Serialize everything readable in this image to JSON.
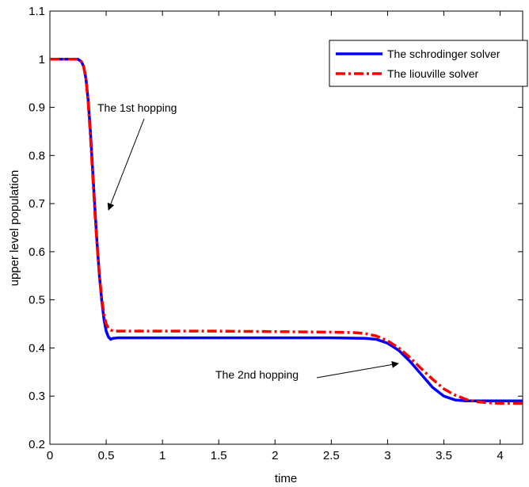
{
  "chart_data": {
    "type": "line",
    "title": "",
    "xlabel": "time",
    "ylabel": "upper level population",
    "xlim": [
      0,
      4.2
    ],
    "ylim": [
      0.2,
      1.1
    ],
    "xticks": [
      0,
      0.5,
      1,
      1.5,
      2,
      2.5,
      3,
      3.5,
      4
    ],
    "xtick_labels": [
      "0",
      "0.5",
      "1",
      "1.5",
      "2",
      "2.5",
      "3",
      "3.5",
      "4"
    ],
    "yticks": [
      0.2,
      0.3,
      0.4,
      0.5,
      0.6,
      0.7,
      0.8,
      0.9,
      1.0,
      1.1
    ],
    "ytick_labels": [
      "0.2",
      "0.3",
      "0.4",
      "0.5",
      "0.6",
      "0.7",
      "0.8",
      "0.9",
      "1",
      "1.1"
    ],
    "grid": false,
    "legend_position": "top-right",
    "series": [
      {
        "name": "The schrodinger solver",
        "color": "#0000ff",
        "style": "solid",
        "x": [
          0,
          0.25,
          0.28,
          0.3,
          0.32,
          0.34,
          0.36,
          0.38,
          0.4,
          0.42,
          0.44,
          0.46,
          0.48,
          0.5,
          0.52,
          0.54,
          0.56,
          0.6,
          0.7,
          1.0,
          1.5,
          2.0,
          2.5,
          2.8,
          2.9,
          3.0,
          3.1,
          3.2,
          3.3,
          3.4,
          3.5,
          3.6,
          3.7,
          3.8,
          4.0,
          4.2
        ],
        "y": [
          1.0,
          1.0,
          0.995,
          0.985,
          0.96,
          0.915,
          0.85,
          0.77,
          0.69,
          0.615,
          0.55,
          0.5,
          0.46,
          0.435,
          0.423,
          0.418,
          0.42,
          0.421,
          0.421,
          0.421,
          0.421,
          0.421,
          0.421,
          0.42,
          0.418,
          0.41,
          0.395,
          0.372,
          0.345,
          0.318,
          0.3,
          0.292,
          0.29,
          0.29,
          0.29,
          0.29
        ]
      },
      {
        "name": "The liouville solver",
        "color": "#ff0000",
        "style": "dashdot",
        "x": [
          0,
          0.25,
          0.28,
          0.3,
          0.32,
          0.34,
          0.36,
          0.38,
          0.4,
          0.42,
          0.44,
          0.46,
          0.48,
          0.5,
          0.52,
          0.54,
          0.56,
          0.6,
          0.7,
          1.0,
          1.5,
          2.0,
          2.5,
          2.7,
          2.8,
          2.9,
          3.0,
          3.1,
          3.2,
          3.3,
          3.4,
          3.5,
          3.6,
          3.7,
          3.8,
          3.9,
          4.0,
          4.2
        ],
        "y": [
          1.0,
          1.0,
          0.995,
          0.985,
          0.96,
          0.91,
          0.84,
          0.76,
          0.68,
          0.61,
          0.55,
          0.505,
          0.47,
          0.45,
          0.441,
          0.437,
          0.436,
          0.435,
          0.435,
          0.435,
          0.435,
          0.434,
          0.433,
          0.432,
          0.43,
          0.425,
          0.415,
          0.4,
          0.38,
          0.357,
          0.335,
          0.315,
          0.302,
          0.293,
          0.288,
          0.286,
          0.285,
          0.285
        ]
      }
    ],
    "annotations": [
      {
        "text": "The 1st hopping",
        "arrow_to": {
          "x": 0.5,
          "y": 0.68
        }
      },
      {
        "text": "The 2nd hopping",
        "arrow_to": {
          "x": 3.1,
          "y": 0.39
        }
      }
    ]
  }
}
